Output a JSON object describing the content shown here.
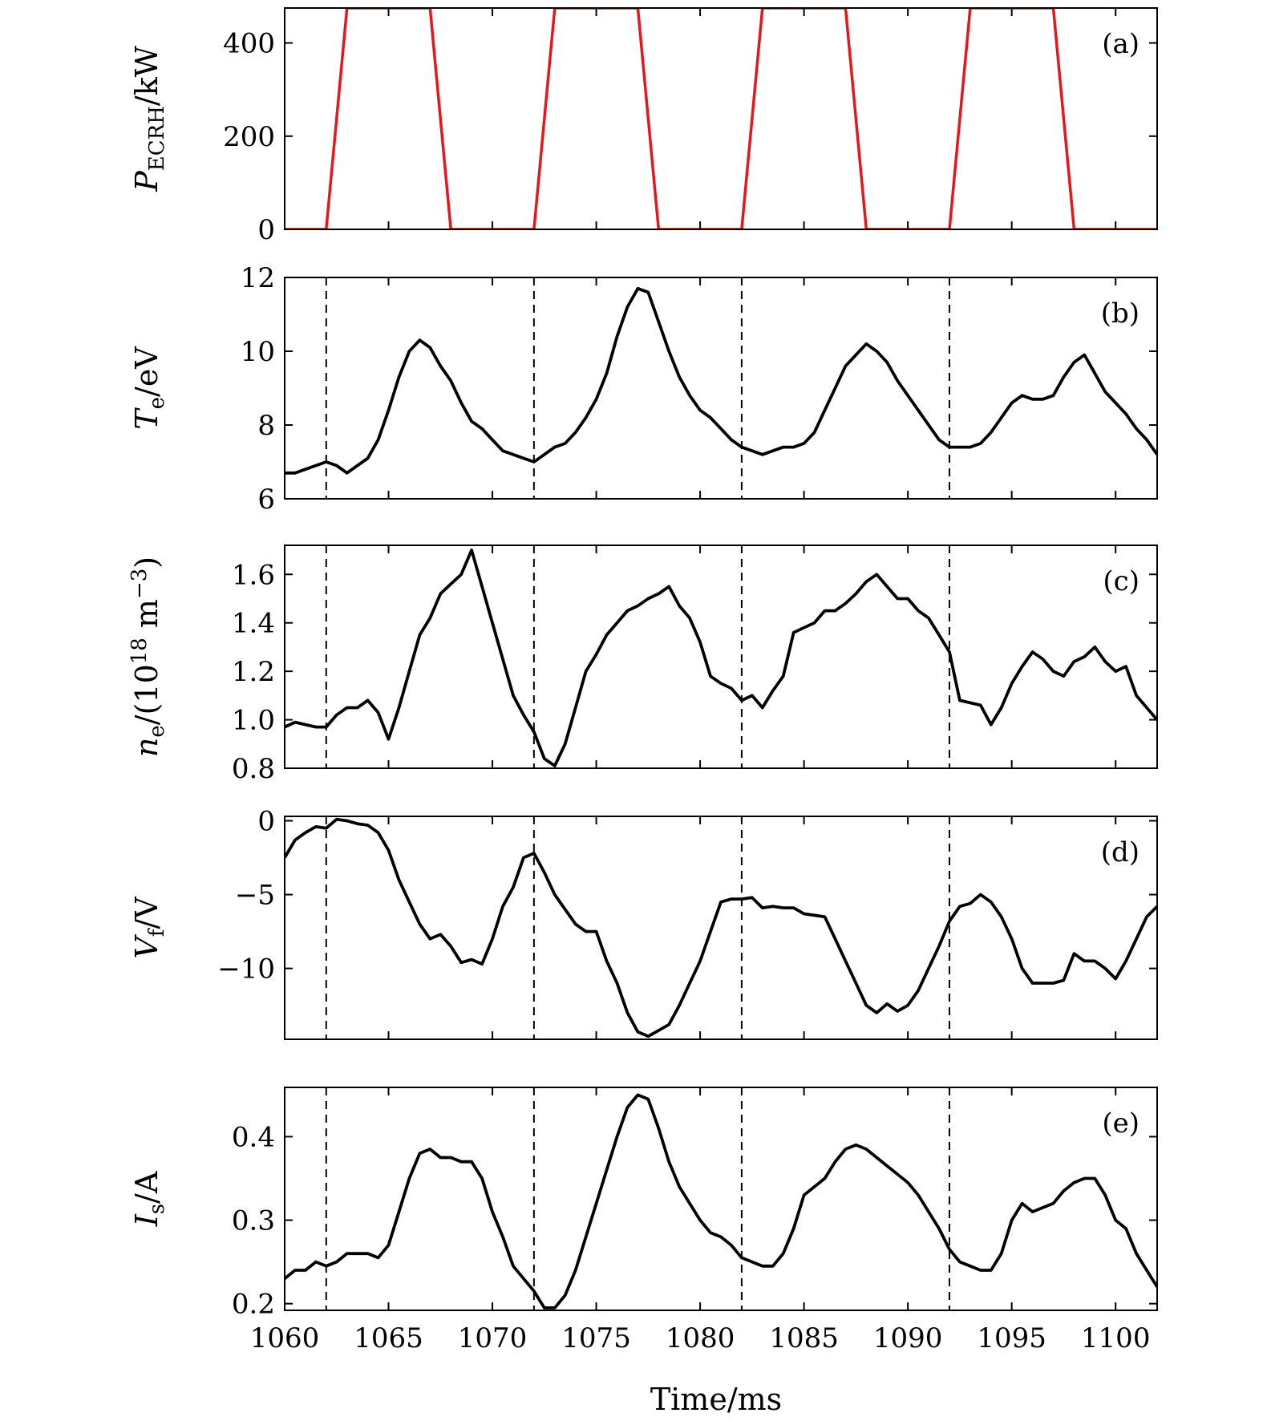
{
  "chart_data": {
    "type": "line",
    "xlabel": "Time/ms",
    "xlim": [
      1060,
      1102
    ],
    "xticks": [
      1060,
      1065,
      1070,
      1075,
      1080,
      1085,
      1090,
      1095,
      1100
    ],
    "xtick_labels": [
      "1060",
      "1065",
      "1070",
      "1075",
      "1080",
      "1085",
      "1090",
      "1095",
      "1100"
    ],
    "dashed_lines_x": [
      1062,
      1072,
      1082,
      1092
    ],
    "panels": [
      {
        "id": "a",
        "tag": "(a)",
        "ylabel_main": "P",
        "ylabel_sub": "ECRH",
        "ylabel_rest": "/kW",
        "ylim": [
          0,
          475
        ],
        "yticks": [
          0,
          200,
          400
        ],
        "ytick_labels": [
          "0",
          "200",
          "400"
        ],
        "color": "#e8161b",
        "dashed": false,
        "series": [
          {
            "x": [
              1060,
              1062,
              1063,
              1067,
              1068,
              1072,
              1073,
              1077,
              1078,
              1082,
              1083,
              1087,
              1088,
              1092,
              1093,
              1097,
              1098,
              1102
            ],
            "y": [
              0,
              0,
              475,
              475,
              0,
              0,
              475,
              475,
              0,
              0,
              475,
              475,
              0,
              0,
              475,
              475,
              0,
              0
            ]
          }
        ]
      },
      {
        "id": "b",
        "tag": "(b)",
        "ylabel_main": "T",
        "ylabel_sub": "e",
        "ylabel_rest": "/eV",
        "ylim": [
          6,
          12
        ],
        "yticks": [
          6,
          8,
          10,
          12
        ],
        "ytick_labels": [
          "6",
          "8",
          "10",
          "12"
        ],
        "color": "#000000",
        "dashed": true,
        "series": [
          {
            "x": [
              1060,
              1060.5,
              1061,
              1061.5,
              1062,
              1062.5,
              1063,
              1063.5,
              1064,
              1064.5,
              1065,
              1065.5,
              1066,
              1066.5,
              1067,
              1067.5,
              1068,
              1068.5,
              1069,
              1069.5,
              1070,
              1070.5,
              1071,
              1071.5,
              1072,
              1072.5,
              1073,
              1073.5,
              1074,
              1074.5,
              1075,
              1075.5,
              1076,
              1076.5,
              1077,
              1077.5,
              1078,
              1078.5,
              1079,
              1079.5,
              1080,
              1080.5,
              1081,
              1081.5,
              1082,
              1082.5,
              1083,
              1083.5,
              1084,
              1084.5,
              1085,
              1085.5,
              1086,
              1086.5,
              1087,
              1087.5,
              1088,
              1088.5,
              1089,
              1089.5,
              1090,
              1090.5,
              1091,
              1091.5,
              1092,
              1092.5,
              1093,
              1093.5,
              1094,
              1094.5,
              1095,
              1095.5,
              1096,
              1096.5,
              1097,
              1097.5,
              1098,
              1098.5,
              1099,
              1099.5,
              1100,
              1100.5,
              1101,
              1101.5,
              1102
            ],
            "y": [
              6.7,
              6.7,
              6.8,
              6.9,
              7.0,
              6.9,
              6.7,
              6.9,
              7.1,
              7.6,
              8.4,
              9.3,
              10.0,
              10.3,
              10.1,
              9.6,
              9.2,
              8.6,
              8.1,
              7.9,
              7.6,
              7.3,
              7.2,
              7.1,
              7.0,
              7.2,
              7.4,
              7.5,
              7.8,
              8.2,
              8.7,
              9.4,
              10.4,
              11.2,
              11.7,
              11.6,
              10.8,
              10.0,
              9.3,
              8.8,
              8.4,
              8.2,
              7.9,
              7.6,
              7.4,
              7.3,
              7.2,
              7.3,
              7.4,
              7.4,
              7.5,
              7.8,
              8.4,
              9.0,
              9.6,
              9.9,
              10.2,
              10.0,
              9.7,
              9.2,
              8.8,
              8.4,
              8.0,
              7.6,
              7.4,
              7.4,
              7.4,
              7.5,
              7.8,
              8.2,
              8.6,
              8.8,
              8.7,
              8.7,
              8.8,
              9.3,
              9.7,
              9.9,
              9.4,
              8.9,
              8.6,
              8.3,
              7.9,
              7.6,
              7.2
            ]
          }
        ]
      },
      {
        "id": "c",
        "tag": "(c)",
        "ylabel_main": "n",
        "ylabel_sub": "e",
        "ylabel_rest": "/(10",
        "ylabel_sup": "18",
        "ylabel_tail": " m",
        "ylabel_tail_sup": "−3",
        "ylabel_close": ")",
        "ylim": [
          0.8,
          1.72
        ],
        "yticks": [
          0.8,
          1.0,
          1.2,
          1.4,
          1.6
        ],
        "ytick_labels": [
          "0.8",
          "1.0",
          "1.2",
          "1.4",
          "1.6"
        ],
        "color": "#000000",
        "dashed": true,
        "series": [
          {
            "x": [
              1060,
              1060.5,
              1061,
              1061.5,
              1062,
              1062.5,
              1063,
              1063.5,
              1064,
              1064.5,
              1065,
              1065.5,
              1066,
              1066.5,
              1067,
              1067.5,
              1068,
              1068.5,
              1069,
              1069.5,
              1070,
              1070.5,
              1071,
              1071.5,
              1072,
              1072.5,
              1073,
              1073.5,
              1074,
              1074.5,
              1075,
              1075.5,
              1076,
              1076.5,
              1077,
              1077.5,
              1078,
              1078.5,
              1079,
              1079.5,
              1080,
              1080.5,
              1081,
              1081.5,
              1082,
              1082.5,
              1083,
              1083.5,
              1084,
              1084.5,
              1085,
              1085.5,
              1086,
              1086.5,
              1087,
              1087.5,
              1088,
              1088.5,
              1089,
              1089.5,
              1090,
              1090.5,
              1091,
              1091.5,
              1092,
              1092.5,
              1093,
              1093.5,
              1094,
              1094.5,
              1095,
              1095.5,
              1096,
              1096.5,
              1097,
              1097.5,
              1098,
              1098.5,
              1099,
              1099.5,
              1100,
              1100.5,
              1101,
              1101.5,
              1102
            ],
            "y": [
              0.97,
              0.99,
              0.98,
              0.97,
              0.97,
              1.02,
              1.05,
              1.05,
              1.08,
              1.03,
              0.92,
              1.05,
              1.2,
              1.35,
              1.42,
              1.52,
              1.56,
              1.6,
              1.7,
              1.55,
              1.4,
              1.25,
              1.1,
              1.02,
              0.95,
              0.84,
              0.81,
              0.9,
              1.05,
              1.2,
              1.27,
              1.35,
              1.4,
              1.45,
              1.47,
              1.5,
              1.52,
              1.55,
              1.47,
              1.42,
              1.32,
              1.18,
              1.15,
              1.13,
              1.08,
              1.1,
              1.05,
              1.12,
              1.18,
              1.36,
              1.38,
              1.4,
              1.45,
              1.45,
              1.48,
              1.52,
              1.57,
              1.6,
              1.55,
              1.5,
              1.5,
              1.45,
              1.42,
              1.35,
              1.28,
              1.08,
              1.07,
              1.06,
              0.98,
              1.05,
              1.15,
              1.22,
              1.28,
              1.25,
              1.2,
              1.18,
              1.24,
              1.26,
              1.3,
              1.24,
              1.2,
              1.22,
              1.1,
              1.05,
              1.0
            ]
          }
        ]
      },
      {
        "id": "d",
        "tag": "(d)",
        "ylabel_main": "V",
        "ylabel_sub": "f",
        "ylabel_rest": "/V",
        "ylim": [
          -14.8,
          0.3
        ],
        "yticks": [
          -10,
          -5,
          0
        ],
        "ytick_labels": [
          "−10",
          "−5",
          "0"
        ],
        "color": "#000000",
        "dashed": true,
        "series": [
          {
            "x": [
              1060,
              1060.5,
              1061,
              1061.5,
              1062,
              1062.5,
              1063,
              1063.5,
              1064,
              1064.5,
              1065,
              1065.5,
              1066,
              1066.5,
              1067,
              1067.5,
              1068,
              1068.5,
              1069,
              1069.5,
              1070,
              1070.5,
              1071,
              1071.5,
              1072,
              1072.5,
              1073,
              1073.5,
              1074,
              1074.5,
              1075,
              1075.5,
              1076,
              1076.5,
              1077,
              1077.5,
              1078,
              1078.5,
              1079,
              1079.5,
              1080,
              1080.5,
              1081,
              1081.5,
              1082,
              1082.5,
              1083,
              1083.5,
              1084,
              1084.5,
              1085,
              1085.5,
              1086,
              1086.5,
              1087,
              1087.5,
              1088,
              1088.5,
              1089,
              1089.5,
              1090,
              1090.5,
              1091,
              1091.5,
              1092,
              1092.5,
              1093,
              1093.5,
              1094,
              1094.5,
              1095,
              1095.5,
              1096,
              1096.5,
              1097,
              1097.5,
              1098,
              1098.5,
              1099,
              1099.5,
              1100,
              1100.5,
              1101,
              1101.5,
              1102
            ],
            "y": [
              -2.5,
              -1.3,
              -0.8,
              -0.4,
              -0.5,
              0.1,
              0.0,
              -0.2,
              -0.3,
              -0.8,
              -2.0,
              -4.0,
              -5.5,
              -7.0,
              -8.0,
              -7.7,
              -8.5,
              -9.6,
              -9.4,
              -9.7,
              -8.0,
              -5.8,
              -4.5,
              -2.5,
              -2.2,
              -3.5,
              -5.0,
              -6.0,
              -7.0,
              -7.5,
              -7.5,
              -9.5,
              -11.0,
              -13.0,
              -14.3,
              -14.6,
              -14.2,
              -13.8,
              -12.5,
              -11.0,
              -9.5,
              -7.5,
              -5.5,
              -5.3,
              -5.3,
              -5.2,
              -5.9,
              -5.8,
              -5.9,
              -5.9,
              -6.3,
              -6.4,
              -6.5,
              -8.0,
              -9.5,
              -11.0,
              -12.5,
              -13.0,
              -12.4,
              -12.9,
              -12.5,
              -11.5,
              -10.0,
              -8.5,
              -6.8,
              -5.8,
              -5.6,
              -5.0,
              -5.5,
              -6.5,
              -8.0,
              -10.0,
              -11.0,
              -11.0,
              -11.0,
              -10.8,
              -9.0,
              -9.5,
              -9.5,
              -10.0,
              -10.7,
              -9.5,
              -8.0,
              -6.5,
              -5.8
            ]
          }
        ]
      },
      {
        "id": "e",
        "tag": "(e)",
        "ylabel_main": "I",
        "ylabel_sub": "s",
        "ylabel_rest": "/A",
        "ylim": [
          0.192,
          0.459
        ],
        "yticks": [
          0.2,
          0.3,
          0.4
        ],
        "ytick_labels": [
          "0.2",
          "0.3",
          "0.4"
        ],
        "color": "#000000",
        "dashed": true,
        "series": [
          {
            "x": [
              1060,
              1060.5,
              1061,
              1061.5,
              1062,
              1062.5,
              1063,
              1063.5,
              1064,
              1064.5,
              1065,
              1065.5,
              1066,
              1066.5,
              1067,
              1067.5,
              1068,
              1068.5,
              1069,
              1069.5,
              1070,
              1070.5,
              1071,
              1071.5,
              1072,
              1072.5,
              1073,
              1073.5,
              1074,
              1074.5,
              1075,
              1075.5,
              1076,
              1076.5,
              1077,
              1077.5,
              1078,
              1078.5,
              1079,
              1079.5,
              1080,
              1080.5,
              1081,
              1081.5,
              1082,
              1082.5,
              1083,
              1083.5,
              1084,
              1084.5,
              1085,
              1085.5,
              1086,
              1086.5,
              1087,
              1087.5,
              1088,
              1088.5,
              1089,
              1089.5,
              1090,
              1090.5,
              1091,
              1091.5,
              1092,
              1092.5,
              1093,
              1093.5,
              1094,
              1094.5,
              1095,
              1095.5,
              1096,
              1096.5,
              1097,
              1097.5,
              1098,
              1098.5,
              1099,
              1099.5,
              1100,
              1100.5,
              1101,
              1101.5,
              1102
            ],
            "y": [
              0.23,
              0.24,
              0.24,
              0.25,
              0.245,
              0.25,
              0.26,
              0.26,
              0.26,
              0.255,
              0.27,
              0.31,
              0.35,
              0.38,
              0.385,
              0.375,
              0.375,
              0.37,
              0.37,
              0.35,
              0.31,
              0.28,
              0.245,
              0.23,
              0.215,
              0.195,
              0.195,
              0.21,
              0.24,
              0.28,
              0.32,
              0.36,
              0.4,
              0.435,
              0.45,
              0.445,
              0.41,
              0.37,
              0.34,
              0.32,
              0.3,
              0.285,
              0.28,
              0.27,
              0.255,
              0.25,
              0.245,
              0.245,
              0.26,
              0.29,
              0.33,
              0.34,
              0.35,
              0.37,
              0.385,
              0.39,
              0.385,
              0.375,
              0.365,
              0.355,
              0.345,
              0.33,
              0.31,
              0.29,
              0.265,
              0.25,
              0.245,
              0.24,
              0.24,
              0.26,
              0.3,
              0.32,
              0.31,
              0.315,
              0.32,
              0.335,
              0.345,
              0.35,
              0.35,
              0.33,
              0.3,
              0.29,
              0.26,
              0.24,
              0.22
            ]
          }
        ]
      }
    ]
  }
}
